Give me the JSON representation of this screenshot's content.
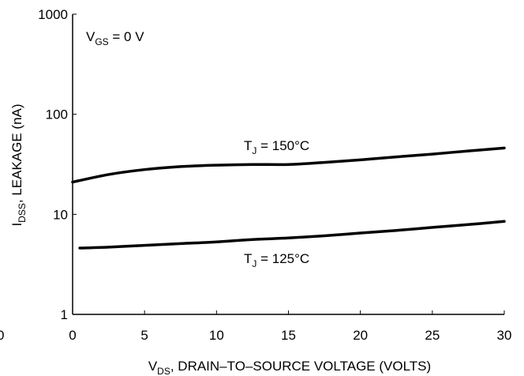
{
  "chart_data": {
    "type": "line",
    "x_axis": {
      "label_main": "V",
      "label_sub": "DS",
      "label_rest": ", DRAIN–TO–SOURCE VOLTAGE (VOLTS)",
      "ticks": [
        0,
        5,
        10,
        15,
        20,
        25,
        30
      ],
      "tick_labels": [
        "0",
        "5",
        "10",
        "15",
        "20",
        "25",
        "30"
      ],
      "range": [
        0,
        30
      ],
      "stray_label": "0"
    },
    "y_axis": {
      "label_main": "I",
      "label_sub": "DSS",
      "label_rest": ", LEAKAGE (nA)",
      "scale": "log",
      "ticks": [
        1,
        10,
        100,
        1000
      ],
      "tick_labels": [
        "1",
        "10",
        "100",
        "1000"
      ],
      "range": [
        1,
        1000
      ]
    },
    "annotations": {
      "condition_main": "V",
      "condition_sub": "GS",
      "condition_rest": " = 0 V",
      "t150_main": "T",
      "t150_sub": "J",
      "t150_rest": " = 150°C",
      "t125_main": "T",
      "t125_sub": "J",
      "t125_rest": " = 125°C"
    },
    "series": [
      {
        "id": "tj150",
        "x": [
          0,
          2.5,
          5,
          7.5,
          10,
          12.5,
          15,
          17.5,
          20,
          22.5,
          25,
          27.5,
          30
        ],
        "y": [
          21,
          25,
          28,
          30,
          31,
          31.5,
          31.5,
          33,
          35,
          37.5,
          40,
          43,
          46
        ]
      },
      {
        "id": "tj125",
        "x": [
          0.5,
          2.5,
          5,
          7.5,
          10,
          12.5,
          15,
          17.5,
          20,
          22.5,
          25,
          27.5,
          30
        ],
        "y": [
          4.6,
          4.7,
          4.9,
          5.1,
          5.3,
          5.6,
          5.8,
          6.1,
          6.5,
          6.9,
          7.4,
          7.9,
          8.5
        ]
      }
    ],
    "grid": false,
    "legend": "none"
  }
}
